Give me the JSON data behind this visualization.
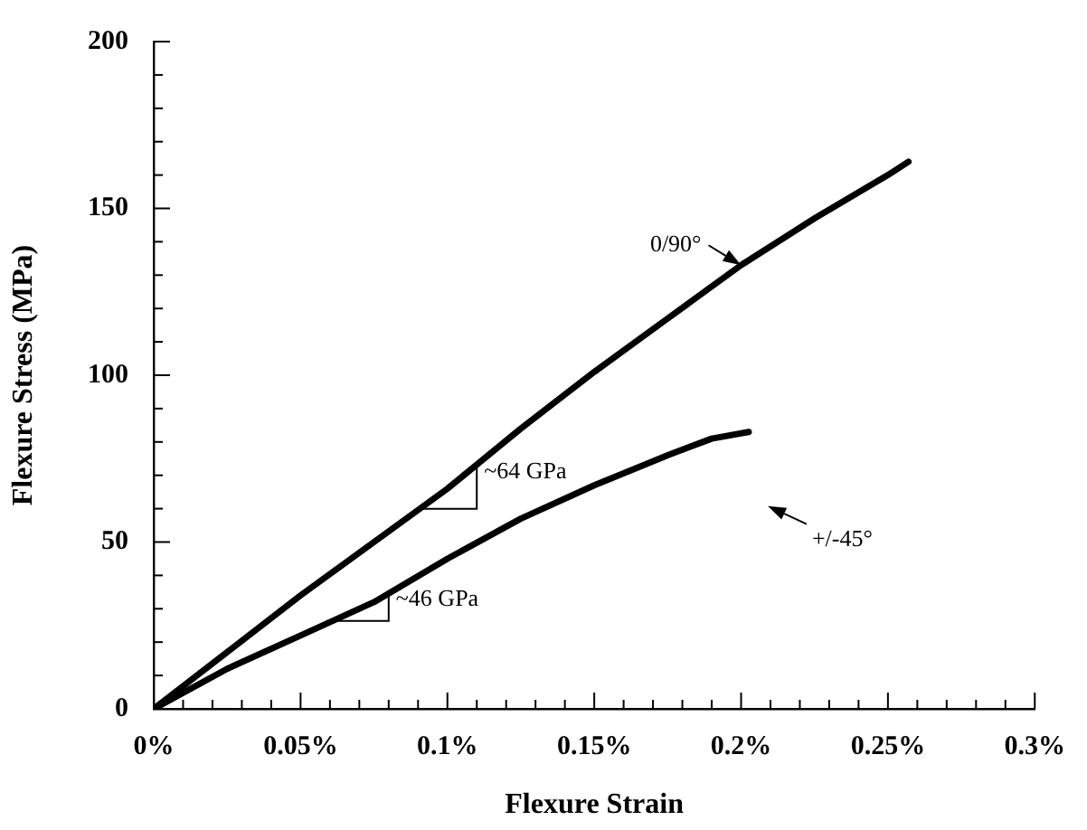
{
  "chart_data": {
    "type": "line",
    "xlabel": "Flexure Strain",
    "ylabel": "Flexure Stress (MPa)",
    "xlim": [
      0,
      0.3
    ],
    "ylim": [
      0,
      200
    ],
    "xticks": [
      {
        "value": 0,
        "label": "0%"
      },
      {
        "value": 0.01,
        "label": null
      },
      {
        "value": 0.02,
        "label": null
      },
      {
        "value": 0.03,
        "label": null
      },
      {
        "value": 0.04,
        "label": null
      },
      {
        "value": 0.05,
        "label": "0.05%"
      },
      {
        "value": 0.06,
        "label": null
      },
      {
        "value": 0.07,
        "label": null
      },
      {
        "value": 0.08,
        "label": null
      },
      {
        "value": 0.09,
        "label": null
      },
      {
        "value": 0.1,
        "label": "0.1%"
      },
      {
        "value": 0.11,
        "label": null
      },
      {
        "value": 0.12,
        "label": null
      },
      {
        "value": 0.13,
        "label": null
      },
      {
        "value": 0.14,
        "label": null
      },
      {
        "value": 0.15,
        "label": "0.15%"
      },
      {
        "value": 0.16,
        "label": null
      },
      {
        "value": 0.17,
        "label": null
      },
      {
        "value": 0.18,
        "label": null
      },
      {
        "value": 0.19,
        "label": null
      },
      {
        "value": 0.2,
        "label": "0.2%"
      },
      {
        "value": 0.21,
        "label": null
      },
      {
        "value": 0.22,
        "label": null
      },
      {
        "value": 0.23,
        "label": null
      },
      {
        "value": 0.24,
        "label": null
      },
      {
        "value": 0.25,
        "label": "0.25%"
      },
      {
        "value": 0.26,
        "label": null
      },
      {
        "value": 0.27,
        "label": null
      },
      {
        "value": 0.28,
        "label": null
      },
      {
        "value": 0.29,
        "label": null
      },
      {
        "value": 0.3,
        "label": "0.3%"
      }
    ],
    "yticks": [
      0,
      {
        "value": 10,
        "label": null
      },
      {
        "value": 20,
        "label": null
      },
      {
        "value": 30,
        "label": null
      },
      {
        "value": 40,
        "label": null
      },
      50,
      {
        "value": 60,
        "label": null
      },
      {
        "value": 70,
        "label": null
      },
      {
        "value": 80,
        "label": null
      },
      {
        "value": 90,
        "label": null
      },
      100,
      {
        "value": 110,
        "label": null
      },
      {
        "value": 120,
        "label": null
      },
      {
        "value": 130,
        "label": null
      },
      {
        "value": 140,
        "label": null
      },
      150,
      {
        "value": 160,
        "label": null
      },
      {
        "value": 170,
        "label": null
      },
      {
        "value": 180,
        "label": null
      },
      {
        "value": 190,
        "label": null
      },
      200
    ],
    "grid": false,
    "legend": false,
    "marker": "none",
    "line_style": "solid",
    "series": [
      {
        "color": "#000000",
        "x": [
          0,
          0.025,
          0.05,
          0.075,
          0.1,
          0.125,
          0.15,
          0.175,
          0.2,
          0.225,
          0.25,
          0.257
        ],
        "values": [
          0,
          17,
          34,
          50,
          66,
          84,
          101,
          117,
          133,
          147,
          160,
          164
        ]
      },
      {
        "color": "#000000",
        "x": [
          0,
          0.025,
          0.05,
          0.075,
          0.1,
          0.125,
          0.15,
          0.175,
          0.19,
          0.2026
        ],
        "values": [
          0,
          12,
          22,
          32,
          45,
          57,
          67,
          76,
          81,
          83
        ]
      }
    ],
    "annotations": [
      {
        "text": "0/90°",
        "x": 0.2,
        "y": 133
      },
      "+/-45°",
      {
        "text": "~64 GPa",
        "x": 0.11,
        "y": 73
      },
      {
        "text": "~46 GPa",
        "x": 0.08,
        "y": 35
      }
    ]
  }
}
